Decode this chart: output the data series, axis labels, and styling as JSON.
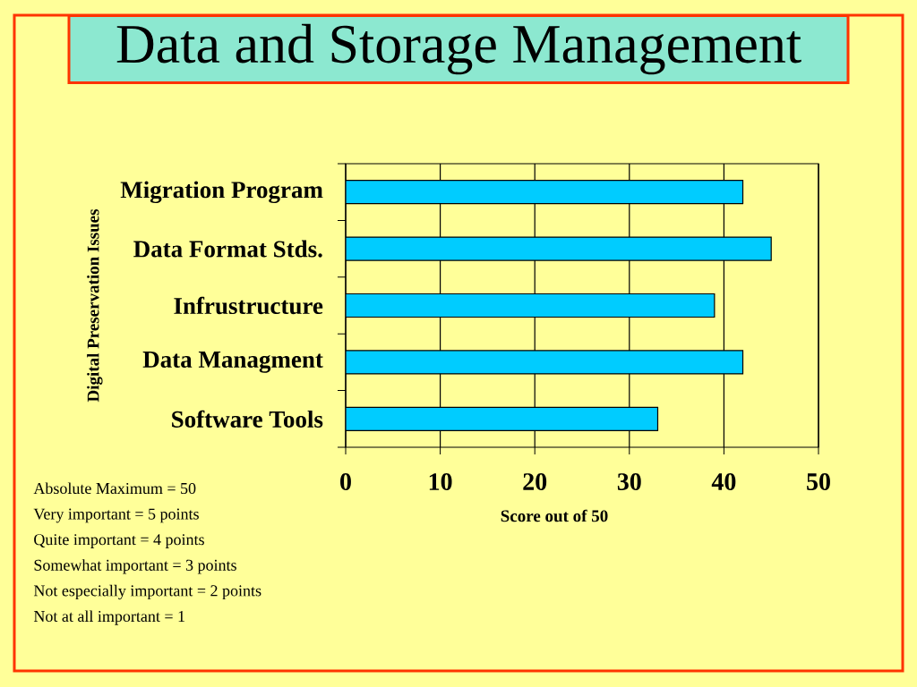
{
  "chart_data": {
    "type": "bar",
    "orientation": "horizontal",
    "title": "Data and Storage Management",
    "xlabel": "Score out of 50",
    "ylabel": "Digital Preservation Issues",
    "categories": [
      "Migration Program",
      "Data Format Stds.",
      "Infrustructure",
      "Data Managment",
      "Software Tools"
    ],
    "values": [
      42,
      45,
      39,
      42,
      33
    ],
    "color": "#00ccff",
    "xlim": [
      0,
      50
    ],
    "xticks": [
      0,
      10,
      20,
      30,
      40,
      50
    ],
    "grid": "x",
    "annotations": [
      "Absolute Maximum = 50",
      "Very important = 5 points",
      "Quite important = 4 points",
      "Somewhat important = 3 points",
      "Not especially important = 2 points",
      "Not at all important = 1"
    ]
  }
}
